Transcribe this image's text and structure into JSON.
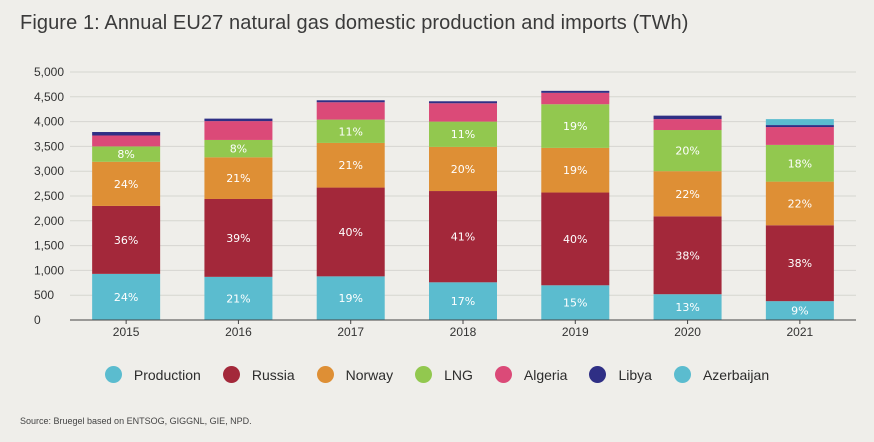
{
  "title": "Figure 1: Annual EU27 natural gas domestic production and imports (TWh)",
  "source": "Source: Bruegel based on ENTSOG, GIGGNL, GIE, NPD.",
  "chart_data": {
    "type": "bar",
    "stacked": true,
    "title": "Figure 1: Annual EU27 natural gas domestic production and imports (TWh)",
    "xlabel": "",
    "ylabel": "TWh",
    "ylim": [
      0,
      5000
    ],
    "yticks": [
      0,
      500,
      1000,
      1500,
      2000,
      2500,
      3000,
      3500,
      4000,
      4500,
      5000
    ],
    "ytick_labels": [
      "0",
      "500",
      "1,000",
      "1,500",
      "2,000",
      "2,500",
      "3,000",
      "3,500",
      "4,000",
      "4,500",
      "5,000"
    ],
    "grid": true,
    "legend_position": "bottom",
    "categories": [
      "2015",
      "2016",
      "2017",
      "2018",
      "2019",
      "2020",
      "2021"
    ],
    "series": [
      {
        "name": "Production",
        "color": "#5bbccf",
        "values": [
          930,
          870,
          880,
          760,
          700,
          520,
          380
        ],
        "labels": [
          "24%",
          "21%",
          "19%",
          "17%",
          "15%",
          "13%",
          "9%"
        ]
      },
      {
        "name": "Russia",
        "color": "#a3283a",
        "values": [
          1370,
          1570,
          1790,
          1840,
          1870,
          1570,
          1530
        ],
        "labels": [
          "36%",
          "39%",
          "40%",
          "41%",
          "40%",
          "38%",
          "38%"
        ]
      },
      {
        "name": "Norway",
        "color": "#de8f35",
        "values": [
          890,
          840,
          900,
          890,
          900,
          910,
          880
        ],
        "labels": [
          "24%",
          "21%",
          "21%",
          "20%",
          "19%",
          "22%",
          "22%"
        ]
      },
      {
        "name": "LNG",
        "color": "#92c84f",
        "values": [
          310,
          350,
          470,
          510,
          880,
          830,
          740
        ],
        "labels": [
          "8%",
          "8%",
          "11%",
          "11%",
          "19%",
          "20%",
          "18%"
        ]
      },
      {
        "name": "Algeria",
        "color": "#db4a78",
        "values": [
          220,
          380,
          350,
          370,
          230,
          220,
          360
        ],
        "labels": [
          "",
          "",
          "",
          "",
          "",
          "",
          ""
        ]
      },
      {
        "name": "Libya",
        "color": "#2f2f85",
        "values": [
          70,
          50,
          40,
          40,
          40,
          70,
          40
        ],
        "labels": [
          "",
          "",
          "",
          "",
          "",
          "",
          ""
        ]
      },
      {
        "name": "Azerbaijan",
        "color": "#5bbccf",
        "values": [
          0,
          0,
          0,
          0,
          0,
          0,
          120
        ],
        "labels": [
          "",
          "",
          "",
          "",
          "",
          "",
          ""
        ]
      }
    ]
  }
}
